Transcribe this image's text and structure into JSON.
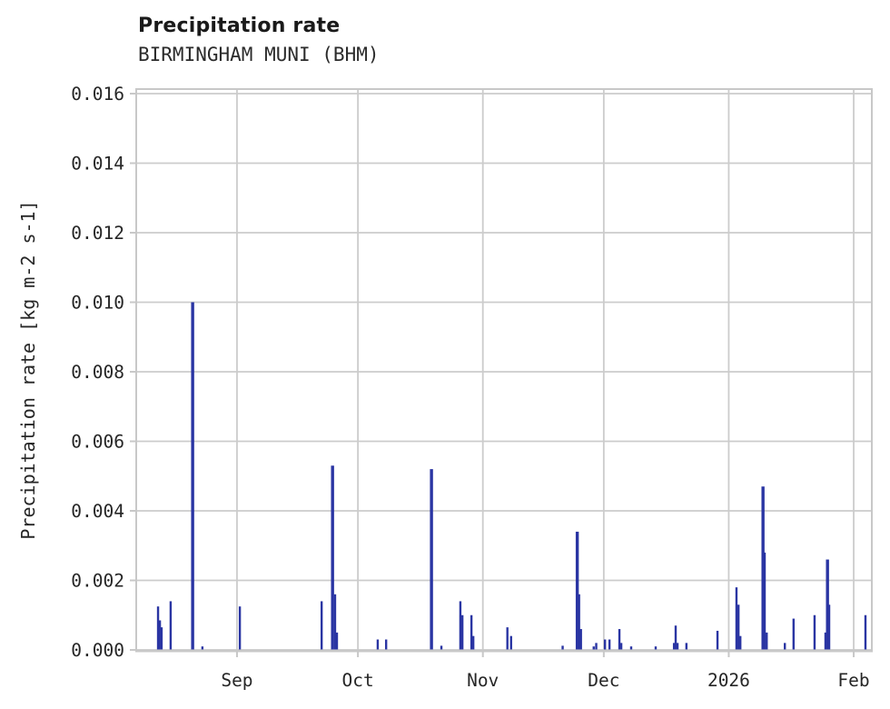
{
  "page": {
    "background": "#ffffff"
  },
  "chart_data": {
    "type": "bar",
    "title": "Precipitation rate",
    "subtitle": "BIRMINGHAM MUNI (BHM)",
    "ylabel": "Precipitation rate [kg m-2 s-1]",
    "xlabel": "",
    "ylim": [
      0,
      0.016
    ],
    "yticks": [
      {
        "value": 0.0,
        "label": "0.000"
      },
      {
        "value": 0.002,
        "label": "0.002"
      },
      {
        "value": 0.004,
        "label": "0.004"
      },
      {
        "value": 0.006,
        "label": "0.006"
      },
      {
        "value": 0.008,
        "label": "0.008"
      },
      {
        "value": 0.01,
        "label": "0.010"
      },
      {
        "value": 0.012,
        "label": "0.012"
      },
      {
        "value": 0.014,
        "label": "0.014"
      },
      {
        "value": 0.016,
        "label": "0.016"
      }
    ],
    "x_range": [
      "2025-08-07T00:00",
      "2026-02-05T12:00"
    ],
    "xticks": [
      {
        "date": "2025-09-01T00:00",
        "label": "Sep"
      },
      {
        "date": "2025-10-01T00:00",
        "label": "Oct"
      },
      {
        "date": "2025-11-01T00:00",
        "label": "Nov"
      },
      {
        "date": "2025-12-01T00:00",
        "label": "Dec"
      },
      {
        "date": "2026-01-01T00:00",
        "label": "2026"
      },
      {
        "date": "2026-02-01T00:00",
        "label": "Feb"
      }
    ],
    "grid": true,
    "legend_position": "none",
    "colors": {
      "bar": "#2a35a3",
      "grid": "#cccccc",
      "spine": "#c8c8c8",
      "tick_text": "#262626",
      "title_text": "#1a1a1a"
    },
    "series": [
      {
        "name": "precipitation_rate",
        "units": "kg m-2 s-1",
        "points": [
          {
            "t": "2025-08-12T10:00",
            "v": 0.00125
          },
          {
            "t": "2025-08-12T21:00",
            "v": 0.00085
          },
          {
            "t": "2025-08-13T07:00",
            "v": 0.00065
          },
          {
            "t": "2025-08-15T13:00",
            "v": 0.0014
          },
          {
            "t": "2025-08-21T00:00",
            "v": 0.01,
            "wide": true
          },
          {
            "t": "2025-08-23T10:00",
            "v": 0.0001
          },
          {
            "t": "2025-09-01T17:00",
            "v": 0.00125
          },
          {
            "t": "2025-09-22T00:00",
            "v": 0.0014
          },
          {
            "t": "2025-09-24T17:00",
            "v": 0.0053,
            "wide": true
          },
          {
            "t": "2025-09-25T08:00",
            "v": 0.0016
          },
          {
            "t": "2025-09-25T19:00",
            "v": 0.0005
          },
          {
            "t": "2025-10-05T22:00",
            "v": 0.0003
          },
          {
            "t": "2025-10-08T00:00",
            "v": 0.0003
          },
          {
            "t": "2025-10-19T06:00",
            "v": 0.0052,
            "wide": true
          },
          {
            "t": "2025-10-21T17:00",
            "v": 0.00012
          },
          {
            "t": "2025-10-26T10:00",
            "v": 0.0014
          },
          {
            "t": "2025-10-26T22:00",
            "v": 0.001
          },
          {
            "t": "2025-10-29T04:00",
            "v": 0.001
          },
          {
            "t": "2025-10-29T15:00",
            "v": 0.0004
          },
          {
            "t": "2025-11-07T02:00",
            "v": 0.00065
          },
          {
            "t": "2025-11-08T00:00",
            "v": 0.0004
          },
          {
            "t": "2025-11-20T19:00",
            "v": 0.00012
          },
          {
            "t": "2025-11-24T10:00",
            "v": 0.0034,
            "wide": true
          },
          {
            "t": "2025-11-24T21:00",
            "v": 0.0016
          },
          {
            "t": "2025-11-25T08:00",
            "v": 0.0006
          },
          {
            "t": "2025-11-28T12:00",
            "v": 0.0001
          },
          {
            "t": "2025-11-29T03:00",
            "v": 0.0002
          },
          {
            "t": "2025-12-01T07:00",
            "v": 0.0003
          },
          {
            "t": "2025-12-02T10:00",
            "v": 0.0003
          },
          {
            "t": "2025-12-04T21:00",
            "v": 0.0006
          },
          {
            "t": "2025-12-05T08:00",
            "v": 0.0002
          },
          {
            "t": "2025-12-07T19:00",
            "v": 0.0001
          },
          {
            "t": "2025-12-13T21:00",
            "v": 0.0001
          },
          {
            "t": "2025-12-18T10:00",
            "v": 0.0002
          },
          {
            "t": "2025-12-18T20:00",
            "v": 0.0007
          },
          {
            "t": "2025-12-19T07:00",
            "v": 0.0002
          },
          {
            "t": "2025-12-21T12:00",
            "v": 0.0002
          },
          {
            "t": "2025-12-29T05:00",
            "v": 0.00055
          },
          {
            "t": "2026-01-02T22:00",
            "v": 0.0018
          },
          {
            "t": "2026-01-03T10:00",
            "v": 0.0013
          },
          {
            "t": "2026-01-03T21:00",
            "v": 0.0004
          },
          {
            "t": "2026-01-09T12:00",
            "v": 0.0047,
            "wide": true
          },
          {
            "t": "2026-01-09T22:00",
            "v": 0.0028
          },
          {
            "t": "2026-01-10T10:00",
            "v": 0.0005
          },
          {
            "t": "2026-01-14T22:00",
            "v": 0.0002
          },
          {
            "t": "2026-01-17T02:00",
            "v": 0.0009
          },
          {
            "t": "2026-01-22T07:00",
            "v": 0.001
          },
          {
            "t": "2026-01-25T00:00",
            "v": 0.0005
          },
          {
            "t": "2026-01-25T12:00",
            "v": 0.0026,
            "wide": true
          },
          {
            "t": "2026-01-25T22:00",
            "v": 0.0013
          },
          {
            "t": "2026-02-03T22:00",
            "v": 0.001
          }
        ]
      }
    ]
  }
}
